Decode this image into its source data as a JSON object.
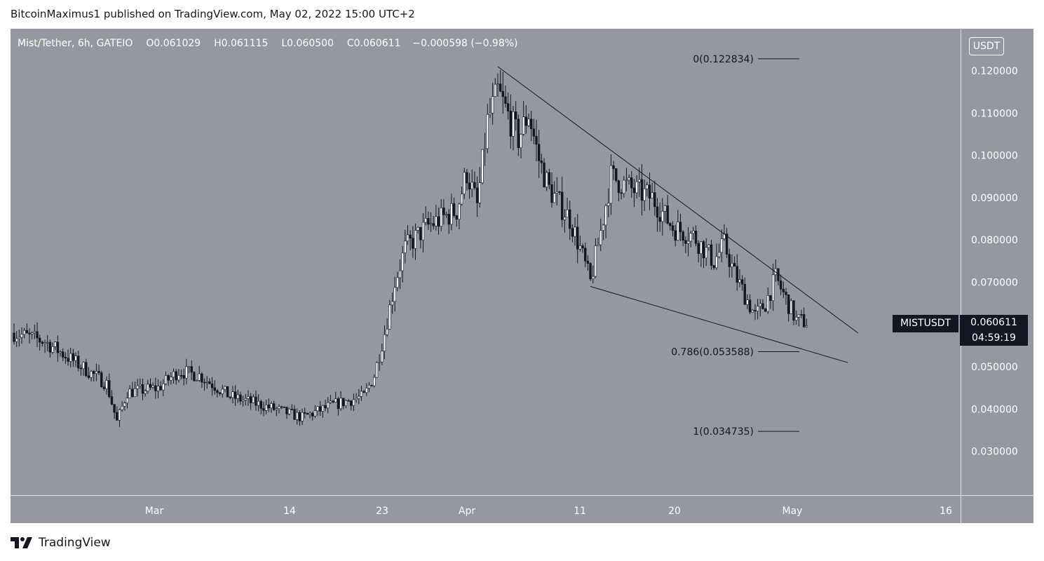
{
  "header": {
    "publisher_line": "BitcoinMaximus1 published on TradingView.com, May 02, 2022 15:00 UTC+2"
  },
  "legend": {
    "symbol": "Mist/Tether, 6h, GATEIO",
    "o_label": "O",
    "o_value": "0.061029",
    "h_label": "H",
    "h_value": "0.061115",
    "l_label": "L",
    "l_value": "0.060500",
    "c_label": "C",
    "c_value": "0.060611",
    "change": "−0.000598 (−0.98%)"
  },
  "price_axis": {
    "unit": "USDT",
    "ticks": [
      "0.120000",
      "0.110000",
      "0.100000",
      "0.090000",
      "0.080000",
      "0.070000",
      "0.050000",
      "0.040000",
      "0.030000"
    ]
  },
  "current": {
    "symbol": "MISTUSDT",
    "price": "0.060611",
    "countdown": "04:59:19"
  },
  "time_axis": {
    "ticks": [
      "Mar",
      "14",
      "23",
      "Apr",
      "11",
      "20",
      "May",
      "16"
    ]
  },
  "fib_levels": [
    {
      "label": "0(0.122834)",
      "value": 0.122834
    },
    {
      "label": "0.786(0.053588)",
      "value": 0.053588
    },
    {
      "label": "1(0.034735)",
      "value": 0.034735
    }
  ],
  "footer": {
    "brand": "TradingView"
  },
  "colors": {
    "background": "#9598a1",
    "candle": "#131722",
    "axis_text": "#ffffff",
    "tag_bg": "#131722"
  },
  "chart_data": {
    "type": "candlestick",
    "title": "Mist/Tether, 6h, GATEIO",
    "ylim": [
      0.02,
      0.13
    ],
    "grid": false,
    "x_ticks": [
      "Mar",
      "14",
      "23",
      "Apr",
      "11",
      "20",
      "May",
      "16"
    ],
    "close_path": [
      [
        "Feb 14",
        0.058
      ],
      [
        "Feb 17",
        0.056
      ],
      [
        "Feb 20",
        0.051
      ],
      [
        "Feb 23",
        0.046
      ],
      [
        "Feb 24",
        0.037
      ],
      [
        "Feb 25",
        0.044
      ],
      [
        "Feb 28",
        0.045
      ],
      [
        "Mar 2",
        0.049
      ],
      [
        "Mar 4",
        0.048
      ],
      [
        "Mar 7",
        0.043
      ],
      [
        "Mar 10",
        0.041
      ],
      [
        "Mar 14",
        0.038
      ],
      [
        "Mar 17",
        0.041
      ],
      [
        "Mar 20",
        0.043
      ],
      [
        "Mar 21",
        0.048
      ],
      [
        "Mar 22",
        0.058
      ],
      [
        "Mar 23",
        0.07
      ],
      [
        "Mar 24",
        0.078
      ],
      [
        "Mar 26",
        0.083
      ],
      [
        "Mar 29",
        0.087
      ],
      [
        "Mar 30",
        0.096
      ],
      [
        "Mar 31",
        0.088
      ],
      [
        "Apr 1",
        0.108
      ],
      [
        "Apr 2",
        0.115
      ],
      [
        "Apr 4",
        0.104
      ],
      [
        "Apr 5",
        0.11
      ],
      [
        "Apr 6",
        0.099
      ],
      [
        "Apr 7",
        0.092
      ],
      [
        "Apr 9",
        0.085
      ],
      [
        "Apr 10",
        0.078
      ],
      [
        "Apr 11",
        0.07
      ],
      [
        "Apr 12",
        0.082
      ],
      [
        "Apr 13",
        0.095
      ],
      [
        "Apr 15",
        0.092
      ],
      [
        "Apr 17",
        0.09
      ],
      [
        "Apr 19",
        0.083
      ],
      [
        "Apr 21",
        0.081
      ],
      [
        "Apr 23",
        0.075
      ],
      [
        "Apr 24",
        0.079
      ],
      [
        "Apr 25",
        0.072
      ],
      [
        "Apr 27",
        0.062
      ],
      [
        "Apr 28",
        0.065
      ],
      [
        "Apr 29",
        0.071
      ],
      [
        "Apr 30",
        0.066
      ],
      [
        "May 1",
        0.061
      ],
      [
        "May 2",
        0.060611
      ]
    ],
    "trendlines": [
      {
        "name": "descending resistance",
        "from": [
          "Apr 2",
          0.121
        ],
        "to": [
          "May 7",
          0.058
        ]
      },
      {
        "name": "descending support",
        "from": [
          "Apr 11",
          0.069
        ],
        "to": [
          "May 6",
          0.051
        ]
      }
    ],
    "last_price": 0.060611
  }
}
